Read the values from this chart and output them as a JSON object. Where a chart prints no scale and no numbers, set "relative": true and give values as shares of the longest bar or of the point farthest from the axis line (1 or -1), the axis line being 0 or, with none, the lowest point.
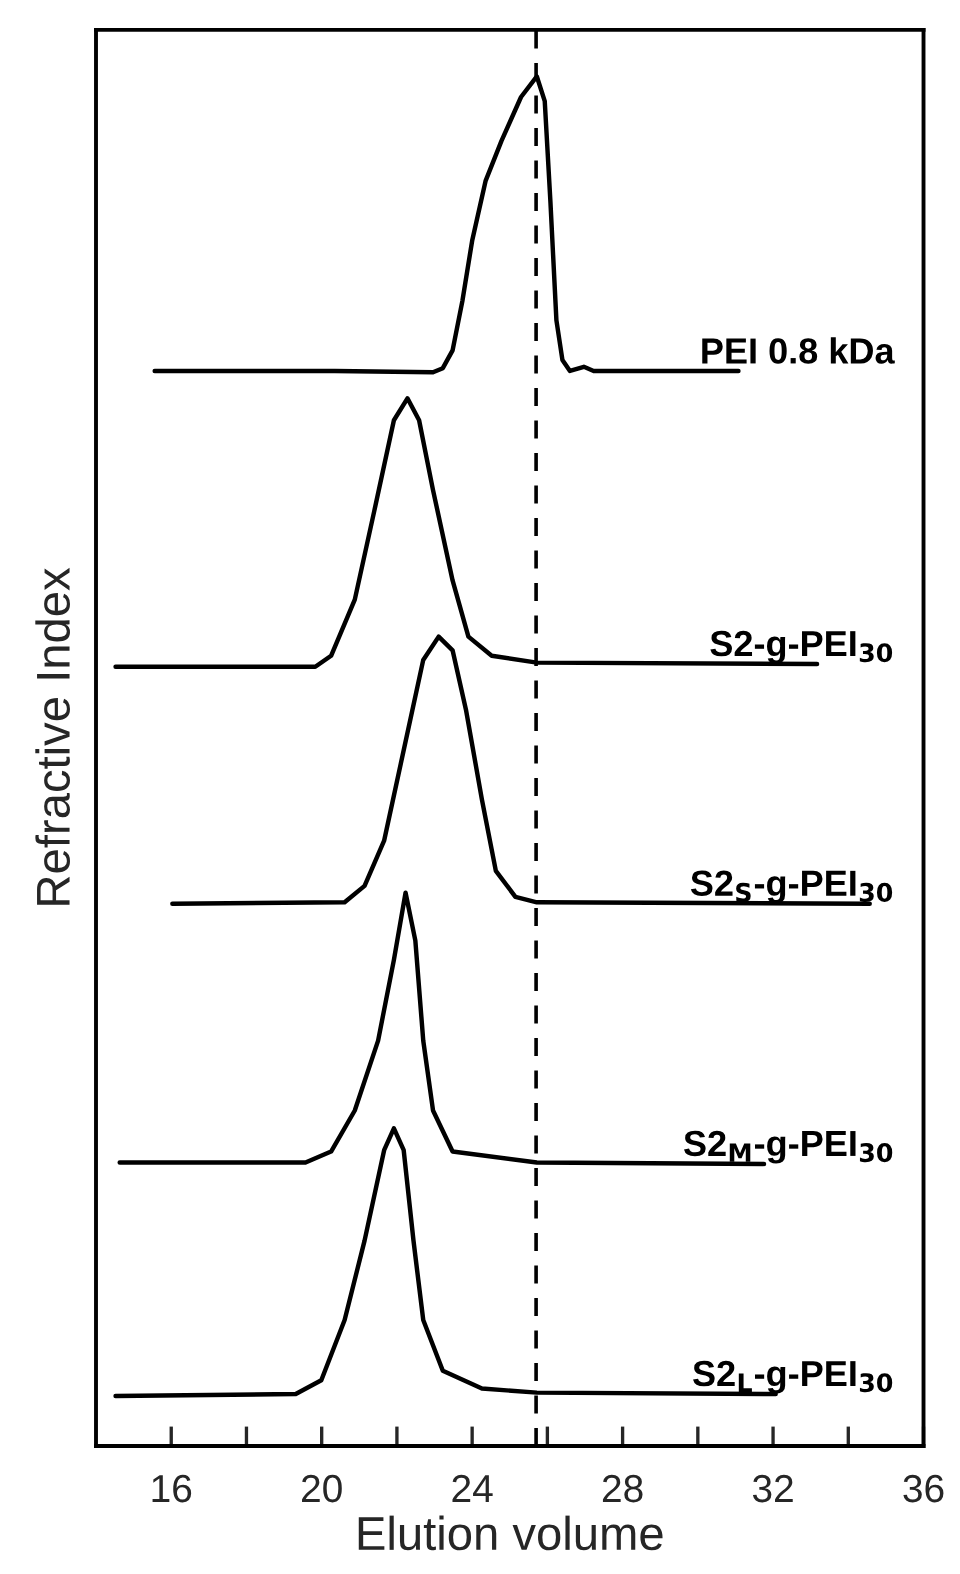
{
  "chart_data": {
    "type": "line",
    "relative": true,
    "xlabel": "Elution volume",
    "ylabel": "Refractive Index",
    "xlim": [
      14,
      36
    ],
    "xticks": [
      {
        "value": 16,
        "label": "16"
      },
      {
        "value": 18,
        "label": null
      },
      {
        "value": 20,
        "label": "20"
      },
      {
        "value": 22,
        "label": null
      },
      {
        "value": 24,
        "label": "24"
      },
      {
        "value": 26,
        "label": null
      },
      {
        "value": 28,
        "label": "28"
      },
      {
        "value": 30,
        "label": null
      },
      {
        "value": 32,
        "label": "32"
      },
      {
        "value": 34,
        "label": null
      },
      {
        "value": 36,
        "label": "36"
      }
    ],
    "tick_labels": "x",
    "grid": false,
    "legend": false,
    "marker": "none",
    "line_style": "solid",
    "ref_lines": [
      {
        "axis": "x",
        "value": 25.7,
        "color": "#000000",
        "line_style": "dashed"
      }
    ],
    "series": [
      {
        "name": "PEI 0.8 kDa",
        "color": "#000000",
        "x": [
          15.56,
          20.35,
          22.96,
          23.22,
          23.48,
          23.74,
          24.0,
          24.36,
          24.78,
          25.3,
          25.72,
          25.93,
          26.08,
          26.24,
          26.4,
          26.6,
          26.97,
          27.23,
          31.08
        ],
        "values": [
          0.785,
          0.785,
          0.784,
          0.787,
          0.8,
          0.836,
          0.88,
          0.924,
          0.953,
          0.985,
          1,
          0.982,
          0.909,
          0.822,
          0.793,
          0.785,
          0.788,
          0.785,
          0.785
        ]
      },
      {
        "name": "S2-g-PEI$_{30}$",
        "color": "#000000",
        "x": [
          14.52,
          19.83,
          20.25,
          20.88,
          21.4,
          21.92,
          22.28,
          22.59,
          22.96,
          23.48,
          23.9,
          24.52,
          25.72,
          33.17
        ],
        "values": [
          0.569,
          0.569,
          0.577,
          0.618,
          0.683,
          0.749,
          0.765,
          0.749,
          0.698,
          0.632,
          0.591,
          0.577,
          0.572,
          0.571
        ]
      },
      {
        "name": "S2$_{S}$-g-PEI$_{30}$",
        "color": "#000000",
        "x": [
          16.03,
          20.61,
          21.14,
          21.66,
          22.18,
          22.7,
          23.11,
          23.48,
          23.84,
          24.26,
          24.63,
          25.15,
          25.72,
          34.57
        ],
        "values": [
          0.396,
          0.397,
          0.409,
          0.442,
          0.508,
          0.574,
          0.591,
          0.581,
          0.537,
          0.472,
          0.42,
          0.401,
          0.397,
          0.396
        ]
      },
      {
        "name": "S2$_{M}$-g-PEI$_{30}$",
        "color": "#000000",
        "x": [
          14.63,
          19.57,
          20.25,
          20.88,
          21.5,
          21.92,
          22.23,
          22.49,
          22.7,
          22.96,
          23.48,
          25.72,
          31.76
        ],
        "values": [
          0.207,
          0.207,
          0.215,
          0.245,
          0.296,
          0.355,
          0.404,
          0.369,
          0.296,
          0.245,
          0.215,
          0.207,
          0.206
        ]
      },
      {
        "name": "S2$_{L}$-g-PEI$_{30}$",
        "color": "#000000",
        "x": [
          14.52,
          19.31,
          19.99,
          20.61,
          21.14,
          21.66,
          21.92,
          22.18,
          22.44,
          22.7,
          23.22,
          24.26,
          25.72,
          32.07
        ],
        "values": [
          0.0365,
          0.038,
          0.048,
          0.092,
          0.15,
          0.216,
          0.232,
          0.216,
          0.15,
          0.092,
          0.055,
          0.042,
          0.039,
          0.038
        ]
      }
    ]
  }
}
